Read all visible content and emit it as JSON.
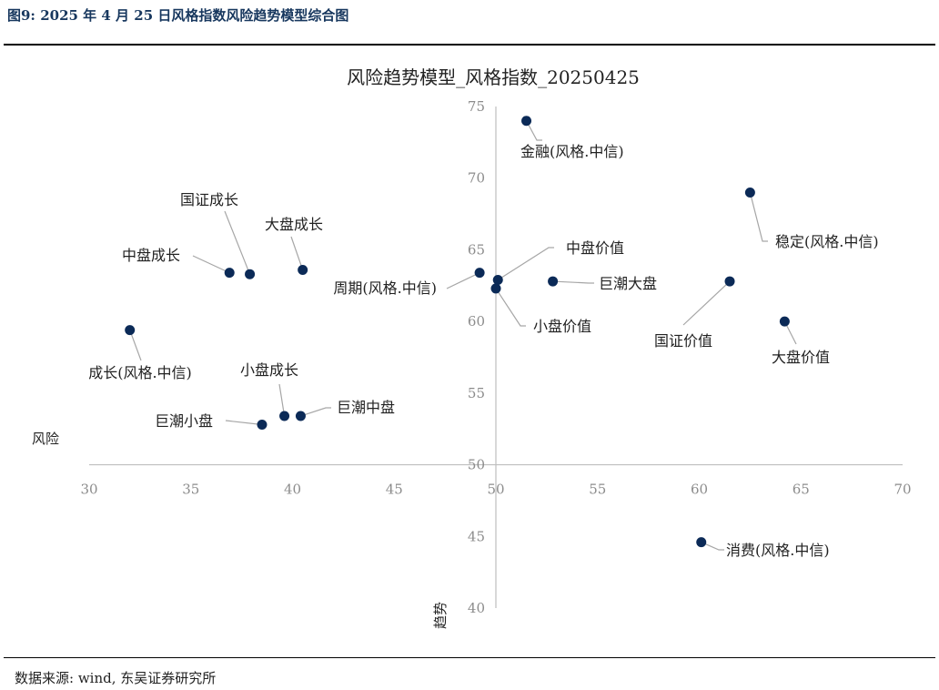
{
  "figure": {
    "title": "图9: 2025 年 4 月 25 日风格指数风险趋势模型综合图",
    "source": "数据来源: wind, 东吴证券研究所"
  },
  "colors": {
    "marker": "#0b2a57",
    "axis": "#bfbfbf",
    "leader": "#a6a6a6",
    "tick": "#8c8c8c",
    "title_text": "#17375e"
  },
  "chart_data": {
    "type": "scatter",
    "title": "风险趋势模型_风格指数_20250425",
    "xlabel": "风险",
    "ylabel": "趋势",
    "xlim": [
      30,
      70
    ],
    "ylim": [
      40,
      75
    ],
    "x_ticks": [
      30,
      35,
      40,
      45,
      50,
      55,
      60,
      65,
      70
    ],
    "y_ticks": [
      40,
      45,
      50,
      55,
      60,
      65,
      70,
      75
    ],
    "grid": false,
    "points": [
      {
        "label": "金融(风格.中信)",
        "x": 51.5,
        "y": 74.0
      },
      {
        "label": "稳定(风格.中信)",
        "x": 62.5,
        "y": 69.0
      },
      {
        "label": "国证成长",
        "x": 37.9,
        "y": 63.3
      },
      {
        "label": "大盘成长",
        "x": 40.5,
        "y": 63.6
      },
      {
        "label": "中盘成长",
        "x": 36.9,
        "y": 63.4
      },
      {
        "label": "周期(风格.中信)",
        "x": 49.2,
        "y": 63.4
      },
      {
        "label": "中盘价值",
        "x": 50.1,
        "y": 62.9
      },
      {
        "label": "小盘价值",
        "x": 50.0,
        "y": 62.3
      },
      {
        "label": "巨潮大盘",
        "x": 52.8,
        "y": 62.8
      },
      {
        "label": "国证价值",
        "x": 61.5,
        "y": 62.8
      },
      {
        "label": "大盘价值",
        "x": 64.2,
        "y": 60.0
      },
      {
        "label": "成长(风格.中信)",
        "x": 32.0,
        "y": 59.4
      },
      {
        "label": "小盘成长",
        "x": 39.6,
        "y": 53.4
      },
      {
        "label": "巨潮中盘",
        "x": 40.4,
        "y": 53.4
      },
      {
        "label": "巨潮小盘",
        "x": 38.5,
        "y": 52.8
      },
      {
        "label": "消费(风格.中信)",
        "x": 60.1,
        "y": 44.6
      }
    ]
  }
}
